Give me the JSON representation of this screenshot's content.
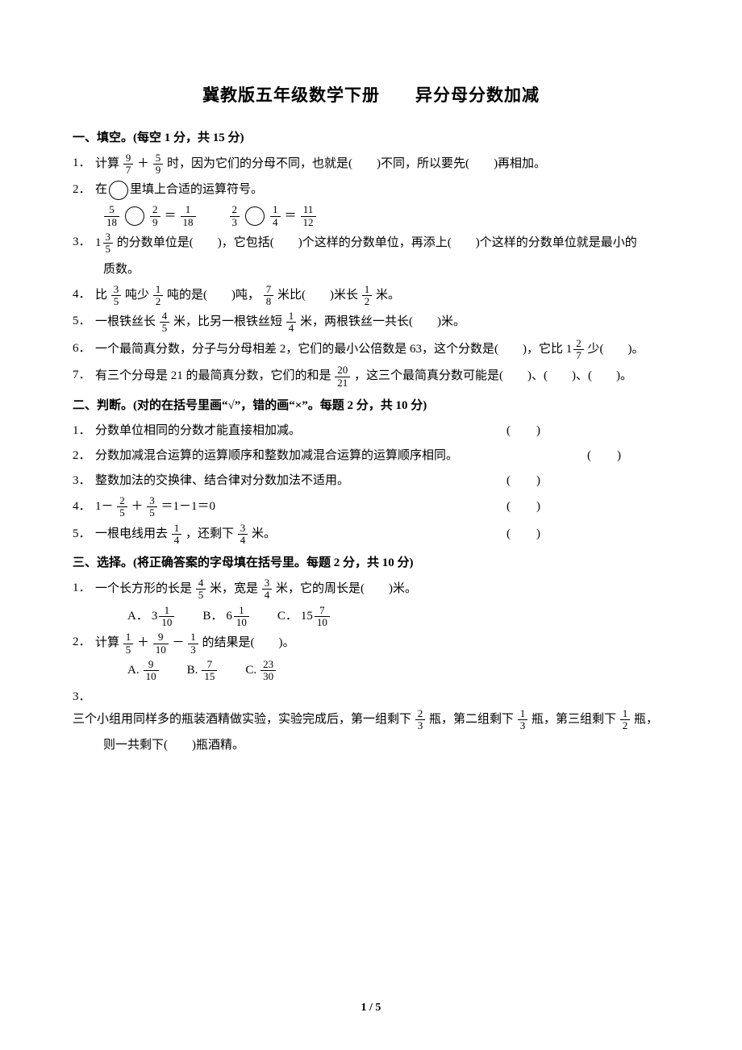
{
  "title": "冀教版五年级数学下册　　异分母分数加减",
  "section1": {
    "heading": "一、填空。(每空 1 分，共 15 分)",
    "q1_pre": "计算",
    "q1_f1n": "9",
    "q1_f1d": "7",
    "q1_plus": "＋",
    "q1_f2n": "5",
    "q1_f2d": "9",
    "q1_post1": "时，因为它们的分母不同，也就是(",
    "q1_blank1": "　　",
    "q1_post2": ")不同，所以要先(",
    "q1_blank2": "　　",
    "q1_post3": ")再相加。",
    "q2_text": "在",
    "q2_after": "里填上合适的运算符号。",
    "q2_e1_f1n": "5",
    "q2_e1_f1d": "18",
    "q2_e1_f2n": "2",
    "q2_e1_f2d": "9",
    "q2_e1_eq": "＝",
    "q2_e1_f3n": "1",
    "q2_e1_f3d": "18",
    "q2_e2_f1n": "2",
    "q2_e2_f1d": "3",
    "q2_e2_f2n": "1",
    "q2_e2_f2d": "4",
    "q2_e2_eq": "＝",
    "q2_e2_f3n": "11",
    "q2_e2_f3d": "12",
    "q3_mixed_w": "1",
    "q3_mixed_n": "3",
    "q3_mixed_d": "5",
    "q3_t1": "的分数单位是(　　)，它包括(　　)个这样的分数单位，再添上(　　)个这样的分数单位就是最小的",
    "q3_t2": "质数。",
    "q4_t1": "比",
    "q4_f1n": "3",
    "q4_f1d": "5",
    "q4_t2": "吨少",
    "q4_f2n": "1",
    "q4_f2d": "2",
    "q4_t3": "吨的是(　　)吨，",
    "q4_f3n": "7",
    "q4_f3d": "8",
    "q4_t4": "米比(　　)米长",
    "q4_f4n": "1",
    "q4_f4d": "2",
    "q4_t5": "米。",
    "q5_t1": "一根铁丝长",
    "q5_f1n": "4",
    "q5_f1d": "5",
    "q5_t2": "米，比另一根铁丝短",
    "q5_f2n": "1",
    "q5_f2d": "4",
    "q5_t3": "米，两根铁丝一共长(　　)米。",
    "q6_t1": "一个最简真分数，分子与分母相差 2，它们的最小公倍数是 63，这个分数是(　　)，它比 ",
    "q6_mw": "1",
    "q6_mn": "2",
    "q6_md": "7",
    "q6_t2": "少(　　)。",
    "q7_t1": "有三个分母是 21 的最简真分数，它们的和是",
    "q7_fn": "20",
    "q7_fd": "21",
    "q7_t2": "，这三个最简真分数可能是(　　)、(　　)、(　　)。"
  },
  "section2": {
    "heading": "二、判断。(对的在括号里画“√”，错的画“×”。每题 2 分，共 10 分)",
    "q1": "分数单位相同的分数才能直接相加减。",
    "q2": "分数加减混合运算的运算顺序和整数加减混合运算的运算顺序相同。",
    "q3": "整数加法的交换律、结合律对分数加法不适用。",
    "q4_pre": "1－",
    "q4_f1n": "2",
    "q4_f1d": "5",
    "q4_plus": "＋",
    "q4_f2n": "3",
    "q4_f2d": "5",
    "q4_post": "＝1－1＝0",
    "q5_t1": "一根电线用去",
    "q5_f1n": "1",
    "q5_f1d": "4",
    "q5_t2": "，还剩下",
    "q5_f2n": "3",
    "q5_f2d": "4",
    "q5_t3": "米。"
  },
  "section3": {
    "heading": "三、选择。(将正确答案的字母填在括号里。每题 2 分，共 10 分)",
    "q1_t1": "一个长方形的长是",
    "q1_f1n": "4",
    "q1_f1d": "5",
    "q1_t2": "米，宽是",
    "q1_f2n": "3",
    "q1_f2d": "4",
    "q1_t3": "米，它的周长是(　　)米。",
    "q1_a_l": "A．",
    "q1_a_w": "3",
    "q1_a_n": "1",
    "q1_a_d": "10",
    "q1_b_l": "B．",
    "q1_b_w": "6",
    "q1_b_n": "1",
    "q1_b_d": "10",
    "q1_c_l": "C．",
    "q1_c_w": "15",
    "q1_c_n": "7",
    "q1_c_d": "10",
    "q2_t1": "计算",
    "q2_f1n": "1",
    "q2_f1d": "5",
    "q2_plus": "＋",
    "q2_f2n": "9",
    "q2_f2d": "10",
    "q2_minus": "－",
    "q2_f3n": "1",
    "q2_f3d": "3",
    "q2_t2": "的结果是(　　)。",
    "q2_a_l": "A.",
    "q2_a_n": "9",
    "q2_a_d": "10",
    "q2_b_l": "B.",
    "q2_b_n": "7",
    "q2_b_d": "15",
    "q2_c_l": "C.",
    "q2_c_n": "23",
    "q2_c_d": "30",
    "q3_t1": "三个小组用同样多的瓶装酒精做实验，实验完成后，第一组剩下",
    "q3_f1n": "2",
    "q3_f1d": "3",
    "q3_t2": "瓶，第二组剩下",
    "q3_f2n": "1",
    "q3_f2d": "3",
    "q3_t3": "瓶，第三组剩下",
    "q3_f3n": "1",
    "q3_f3d": "2",
    "q3_t4": "瓶，",
    "q3_t5": "则一共剩下(　　)瓶酒精。"
  },
  "nums": {
    "n1": "1．",
    "n2": "2．",
    "n3": "3．",
    "n4": "4．",
    "n5": "5．",
    "n6": "6．",
    "n7": "7．"
  },
  "footer": "1 / 5"
}
